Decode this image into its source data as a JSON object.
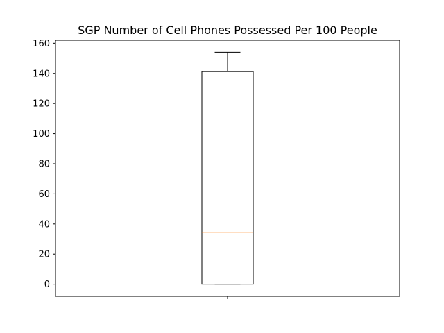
{
  "chart_data": {
    "type": "box",
    "title": "SGP Number of Cell Phones Possessed Per 100 People",
    "xlabel": "",
    "ylabel": "",
    "ylim": [
      -8,
      162
    ],
    "yticks": [
      0,
      20,
      40,
      60,
      80,
      100,
      120,
      140,
      160
    ],
    "xticks": [
      1
    ],
    "xtick_labels": [
      ""
    ],
    "grid": false,
    "legend": "none",
    "boxes": [
      {
        "position": 1,
        "whisker_low": 0,
        "q1": 0,
        "median": 34.5,
        "q3": 141.2,
        "whisker_high": 154
      }
    ],
    "colors": {
      "box": "#000000",
      "median": "#ff7f0e"
    }
  }
}
